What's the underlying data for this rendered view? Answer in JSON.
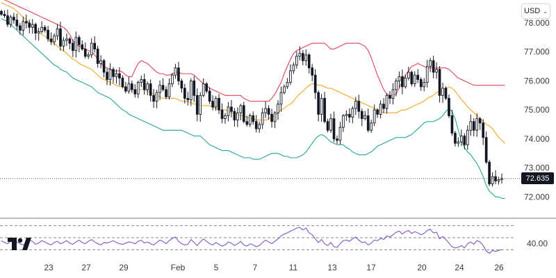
{
  "currency": {
    "label": "USD",
    "chevron_icon": "chevron-down-icon"
  },
  "logo_icon": "tradingview-logo-icon",
  "last_price_label": "72.635",
  "chart_data": [
    {
      "type": "candlestick",
      "ylim": [
        71.6,
        78.6
      ],
      "y_ticks": [
        72.0,
        73.0,
        74.0,
        75.0,
        76.0,
        77.0,
        78.0
      ],
      "y_tick_labels": [
        "72.000",
        "73.000",
        "74.000",
        "75.000",
        "76.000",
        "77.000",
        "78.000"
      ],
      "x_tick_labels": [
        "23",
        "27",
        "29",
        "Feb",
        "5",
        "7",
        "11",
        "13",
        "17",
        "20",
        "24",
        "26"
      ],
      "last_price": 72.635,
      "candles_close": [
        78.3,
        78.25,
        77.95,
        78.2,
        78.1,
        77.9,
        77.75,
        78.05,
        78.0,
        77.85,
        77.95,
        77.65,
        77.7,
        77.85,
        77.75,
        77.45,
        77.35,
        77.55,
        77.8,
        77.2,
        77.4,
        77.45,
        77.3,
        77.05,
        77.5,
        77.25,
        77.1,
        76.85,
        76.9,
        77.3,
        77.1,
        76.6,
        76.7,
        76.3,
        76.05,
        76.4,
        76.15,
        76.25,
        76.1,
        75.8,
        75.65,
        75.9,
        75.7,
        75.55,
        75.95,
        76.05,
        75.7,
        75.9,
        75.5,
        75.3,
        75.6,
        75.85,
        75.7,
        75.45,
        75.9,
        76.2,
        76.45,
        76.0,
        75.75,
        75.4,
        75.35,
        76.0,
        75.5,
        74.85,
        75.5,
        75.9,
        75.65,
        75.3,
        75.1,
        75.4,
        75.0,
        74.7,
        74.8,
        75.1,
        74.95,
        74.65,
        74.9,
        75.15,
        74.6,
        74.5,
        74.8,
        74.6,
        74.35,
        74.5,
        74.9,
        75.05,
        74.85,
        74.6,
        74.9,
        75.2,
        75.6,
        75.8,
        75.95,
        76.35,
        76.55,
        76.85,
        76.95,
        76.7,
        76.9,
        76.45,
        76.2,
        75.6,
        74.85,
        75.4,
        74.6,
        74.3,
        74.7,
        74.0,
        73.95,
        74.4,
        74.8,
        74.85,
        74.75,
        75.05,
        75.3,
        74.95,
        74.7,
        74.8,
        74.3,
        74.55,
        75.0,
        74.85,
        75.2,
        75.05,
        75.5,
        75.4,
        75.7,
        76.0,
        76.15,
        75.8,
        76.1,
        76.3,
        75.9,
        76.2,
        76.05,
        75.8,
        75.95,
        76.5,
        76.7,
        76.3,
        76.4,
        75.5,
        75.75,
        75.4,
        74.8,
        74.2,
        73.85,
        73.9,
        74.1,
        73.8,
        74.3,
        74.6,
        74.3,
        74.7,
        74.55,
        74.05,
        73.2,
        72.45,
        72.7,
        72.55,
        72.6,
        72.635
      ],
      "bollinger_upper": [
        78.85,
        78.8,
        78.75,
        78.7,
        78.65,
        78.6,
        78.55,
        78.5,
        78.45,
        78.4,
        78.35,
        78.3,
        78.25,
        78.2,
        78.15,
        78.1,
        78.05,
        78.0,
        77.95,
        77.9,
        77.85,
        77.75,
        77.6,
        77.4,
        77.25,
        77.2,
        77.15,
        77.1,
        77.05,
        77.0,
        76.9,
        76.75,
        76.6,
        76.5,
        76.45,
        76.4,
        76.35,
        76.35,
        76.35,
        76.3,
        76.2,
        76.15,
        76.15,
        76.4,
        76.6,
        76.7,
        76.65,
        76.6,
        76.5,
        76.4,
        76.3,
        76.25,
        76.25,
        76.2,
        76.2,
        76.25,
        76.3,
        76.3,
        76.25,
        76.25,
        76.25,
        76.25,
        76.2,
        76.1,
        76.0,
        75.9,
        75.85,
        75.75,
        75.7,
        75.65,
        75.6,
        75.55,
        75.5,
        75.5,
        75.5,
        75.5,
        75.5,
        75.5,
        75.4,
        75.35,
        75.3,
        75.3,
        75.3,
        75.3,
        75.3,
        75.3,
        75.3,
        75.4,
        75.55,
        75.75,
        75.95,
        76.25,
        76.5,
        76.75,
        76.95,
        77.05,
        77.1,
        77.15,
        77.2,
        77.25,
        77.3,
        77.3,
        77.3,
        77.3,
        77.3,
        77.2,
        77.1,
        77.1,
        77.15,
        77.2,
        77.25,
        77.3,
        77.3,
        77.3,
        77.3,
        77.3,
        77.25,
        77.2,
        77.05,
        76.8,
        76.5,
        76.2,
        75.95,
        75.7,
        75.55,
        75.5,
        75.5,
        75.55,
        75.75,
        76.0,
        76.2,
        76.35,
        76.5,
        76.55,
        76.6,
        76.55,
        76.5,
        76.45,
        76.45,
        76.45,
        76.45,
        76.45,
        76.45,
        76.45,
        76.4,
        76.3,
        76.2,
        76.1,
        76.05,
        76.0,
        75.95,
        75.9,
        75.85,
        75.85,
        75.85,
        75.85,
        75.85,
        75.85,
        75.85,
        75.85,
        75.85,
        75.85,
        75.85
      ],
      "bollinger_middle": [
        78.7,
        78.65,
        78.6,
        78.55,
        78.5,
        78.4,
        78.3,
        78.2,
        78.1,
        78.0,
        77.9,
        77.8,
        77.7,
        77.6,
        77.55,
        77.45,
        77.35,
        77.3,
        77.2,
        77.1,
        77.05,
        76.95,
        76.85,
        76.75,
        76.7,
        76.6,
        76.55,
        76.5,
        76.45,
        76.4,
        76.3,
        76.2,
        76.1,
        76.05,
        76.0,
        75.95,
        75.9,
        75.85,
        75.8,
        75.8,
        75.75,
        75.75,
        75.7,
        75.7,
        75.7,
        75.7,
        75.7,
        75.65,
        75.6,
        75.55,
        75.5,
        75.45,
        75.4,
        75.4,
        75.4,
        75.4,
        75.4,
        75.35,
        75.3,
        75.3,
        75.3,
        75.25,
        75.2,
        75.2,
        75.15,
        75.15,
        75.15,
        75.15,
        75.1,
        75.05,
        75.0,
        75.0,
        75.0,
        74.95,
        74.9,
        74.9,
        74.85,
        74.8,
        74.8,
        74.75,
        74.7,
        74.7,
        74.65,
        74.65,
        74.65,
        74.65,
        74.7,
        74.75,
        74.8,
        74.9,
        75.0,
        75.05,
        75.15,
        75.2,
        75.3,
        75.45,
        75.55,
        75.65,
        75.75,
        75.85,
        75.9,
        75.9,
        75.85,
        75.85,
        75.8,
        75.75,
        75.75,
        75.7,
        75.65,
        75.6,
        75.55,
        75.5,
        75.45,
        75.4,
        75.35,
        75.3,
        75.25,
        75.2,
        75.15,
        75.1,
        75.05,
        75.0,
        74.95,
        74.9,
        74.9,
        74.9,
        74.9,
        74.9,
        74.95,
        75.0,
        75.0,
        75.05,
        75.1,
        75.15,
        75.2,
        75.25,
        75.3,
        75.4,
        75.45,
        75.5,
        75.6,
        75.65,
        75.7,
        75.75,
        75.8,
        75.75,
        75.65,
        75.5,
        75.35,
        75.25,
        75.1,
        75.0,
        74.9,
        74.8,
        74.7,
        74.6,
        74.5,
        74.45,
        74.35,
        74.2,
        74.05,
        73.95,
        73.85
      ],
      "bollinger_lower": [
        78.15,
        78.1,
        78.05,
        77.95,
        77.85,
        77.75,
        77.65,
        77.55,
        77.45,
        77.35,
        77.25,
        77.15,
        77.05,
        76.95,
        76.85,
        76.75,
        76.65,
        76.55,
        76.5,
        76.4,
        76.35,
        76.3,
        76.2,
        76.1,
        76.05,
        76.0,
        75.95,
        75.9,
        75.85,
        75.8,
        75.7,
        75.6,
        75.55,
        75.5,
        75.45,
        75.4,
        75.3,
        75.2,
        75.1,
        75.0,
        74.95,
        74.85,
        74.8,
        74.75,
        74.7,
        74.65,
        74.6,
        74.55,
        74.5,
        74.45,
        74.4,
        74.35,
        74.3,
        74.3,
        74.3,
        74.3,
        74.3,
        74.3,
        74.3,
        74.25,
        74.2,
        74.15,
        74.1,
        74.1,
        74.1,
        74.0,
        73.9,
        73.8,
        73.75,
        73.7,
        73.65,
        73.6,
        73.6,
        73.6,
        73.55,
        73.5,
        73.45,
        73.4,
        73.35,
        73.35,
        73.35,
        73.3,
        73.3,
        73.3,
        73.35,
        73.4,
        73.45,
        73.5,
        73.5,
        73.5,
        73.45,
        73.4,
        73.4,
        73.35,
        73.35,
        73.35,
        73.4,
        73.45,
        73.55,
        73.7,
        73.85,
        74.0,
        74.1,
        74.15,
        74.1,
        74.0,
        73.9,
        73.85,
        73.8,
        73.8,
        73.8,
        73.7,
        73.65,
        73.55,
        73.5,
        73.45,
        73.45,
        73.45,
        73.5,
        73.55,
        73.65,
        73.75,
        73.8,
        73.85,
        73.9,
        73.95,
        74.0,
        74.05,
        74.05,
        74.05,
        74.05,
        74.1,
        74.15,
        74.25,
        74.35,
        74.45,
        74.55,
        74.6,
        74.6,
        74.6,
        74.65,
        74.7,
        74.8,
        74.95,
        75.05,
        74.95,
        74.7,
        74.3,
        73.95,
        73.7,
        73.55,
        73.45,
        73.3,
        73.15,
        72.95,
        72.7,
        72.4,
        72.2,
        72.1,
        72.0,
        72.0,
        71.95,
        71.95
      ]
    },
    {
      "type": "line",
      "ylim": [
        20,
        80
      ],
      "y_tick_labels": [
        "40.00"
      ],
      "y_ticks": [
        40
      ],
      "levels": [
        70,
        50,
        30
      ],
      "values": [
        45,
        42,
        40,
        44,
        47,
        43,
        40,
        38,
        42,
        46,
        44,
        39,
        41,
        45,
        43,
        40,
        38,
        42,
        44,
        40,
        42,
        45,
        41,
        39,
        43,
        46,
        42,
        40,
        44,
        47,
        43,
        40,
        38,
        42,
        41,
        43,
        45,
        42,
        40,
        39,
        41,
        43,
        42,
        40,
        44,
        46,
        41,
        43,
        40,
        38,
        42,
        46,
        44,
        40,
        45,
        49,
        51,
        44,
        40,
        38,
        39,
        47,
        42,
        37,
        43,
        48,
        44,
        40,
        38,
        42,
        39,
        36,
        38,
        43,
        41,
        37,
        40,
        44,
        38,
        36,
        40,
        38,
        35,
        37,
        42,
        46,
        43,
        40,
        44,
        48,
        53,
        56,
        58,
        61,
        63,
        66,
        67,
        63,
        66,
        58,
        55,
        48,
        42,
        47,
        40,
        37,
        42,
        35,
        34,
        40,
        45,
        46,
        44,
        48,
        51,
        46,
        42,
        43,
        38,
        41,
        46,
        45,
        49,
        47,
        53,
        51,
        55,
        59,
        61,
        56,
        60,
        62,
        57,
        60,
        58,
        55,
        57,
        62,
        64,
        58,
        59,
        48,
        52,
        47,
        41,
        35,
        33,
        34,
        37,
        33,
        40,
        43,
        39,
        45,
        43,
        37,
        28,
        24,
        29,
        27,
        29,
        30
      ]
    }
  ]
}
